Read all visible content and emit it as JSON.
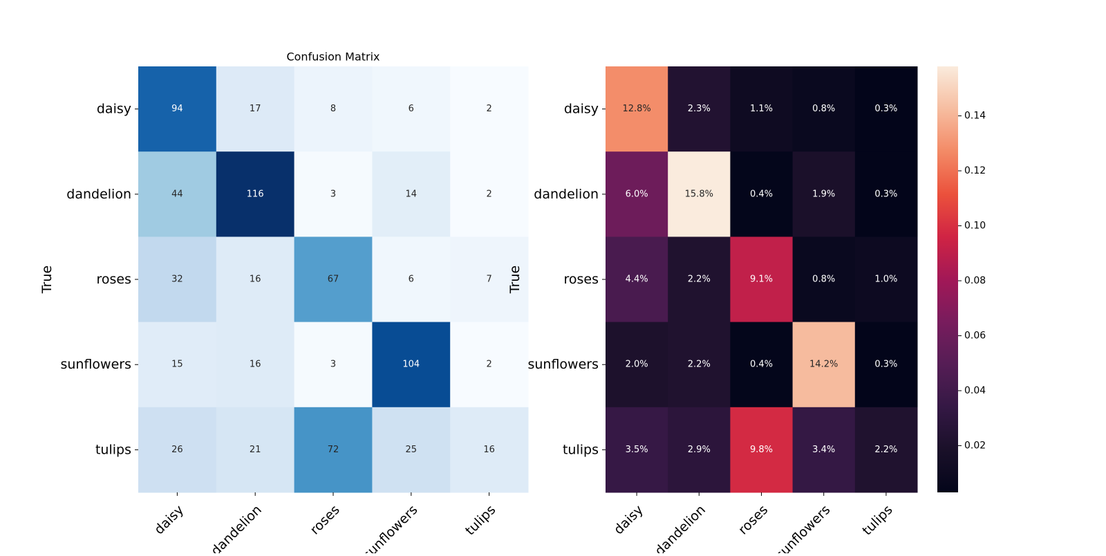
{
  "chart_data": [
    {
      "type": "heatmap",
      "title": "Confusion Matrix",
      "ylabel": "True",
      "xlabel": "",
      "row_labels": [
        "daisy",
        "dandelion",
        "roses",
        "sunflowers",
        "tulips"
      ],
      "col_labels": [
        "daisy",
        "dandelion",
        "roses",
        "sunflowers",
        "tulips"
      ],
      "values": [
        [
          94,
          17,
          8,
          6,
          2
        ],
        [
          44,
          116,
          3,
          14,
          2
        ],
        [
          32,
          16,
          67,
          6,
          7
        ],
        [
          15,
          16,
          3,
          104,
          2
        ],
        [
          26,
          21,
          72,
          25,
          16
        ]
      ],
      "colormap": "Blues",
      "colorbar": false
    },
    {
      "type": "heatmap",
      "title": "",
      "ylabel": "True",
      "xlabel": "",
      "row_labels": [
        "daisy",
        "dandelion",
        "roses",
        "sunflowers",
        "tulips"
      ],
      "col_labels": [
        "daisy",
        "dandelion",
        "roses",
        "sunflowers",
        "tulips"
      ],
      "values": [
        [
          0.128,
          0.023,
          0.011,
          0.008,
          0.003
        ],
        [
          0.06,
          0.158,
          0.004,
          0.019,
          0.003
        ],
        [
          0.044,
          0.022,
          0.091,
          0.008,
          0.01
        ],
        [
          0.02,
          0.022,
          0.004,
          0.142,
          0.003
        ],
        [
          0.035,
          0.029,
          0.098,
          0.034,
          0.022
        ]
      ],
      "value_labels": [
        [
          "12.8%",
          "2.3%",
          "1.1%",
          "0.8%",
          "0.3%"
        ],
        [
          "6.0%",
          "15.8%",
          "0.4%",
          "1.9%",
          "0.3%"
        ],
        [
          "4.4%",
          "2.2%",
          "9.1%",
          "0.8%",
          "1.0%"
        ],
        [
          "2.0%",
          "2.2%",
          "0.4%",
          "14.2%",
          "0.3%"
        ],
        [
          "3.5%",
          "2.9%",
          "9.8%",
          "3.4%",
          "2.2%"
        ]
      ],
      "colormap": "rocket",
      "colorbar": true,
      "colorbar_range": [
        0.003,
        0.158
      ],
      "colorbar_ticks": [
        0.02,
        0.04,
        0.06,
        0.08,
        0.1,
        0.12,
        0.14
      ],
      "colorbar_tick_labels": [
        "0.02",
        "0.04",
        "0.06",
        "0.08",
        "0.10",
        "0.12",
        "0.14"
      ]
    }
  ]
}
